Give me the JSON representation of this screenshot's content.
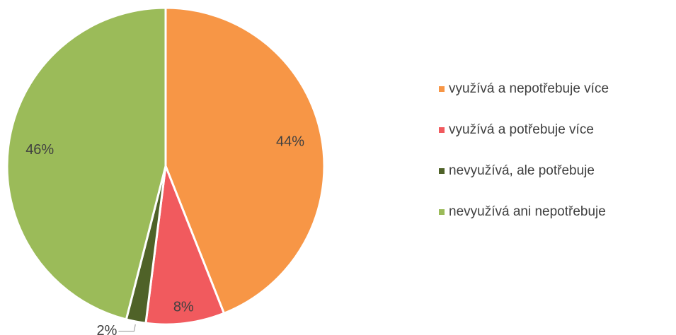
{
  "chart_data": {
    "type": "pie",
    "categories": [
      "využívá a nepotřebuje více",
      "využívá a potřebuje více",
      "nevyužívá, ale potřebuje",
      "nevyužívá ani nepotřebuje"
    ],
    "values": [
      44,
      8,
      2,
      46
    ],
    "value_labels": [
      "44%",
      "8%",
      "2%",
      "46%"
    ],
    "colors": [
      "#f79646",
      "#f15a5e",
      "#4f6228",
      "#9bbb59"
    ],
    "legend": "right"
  }
}
